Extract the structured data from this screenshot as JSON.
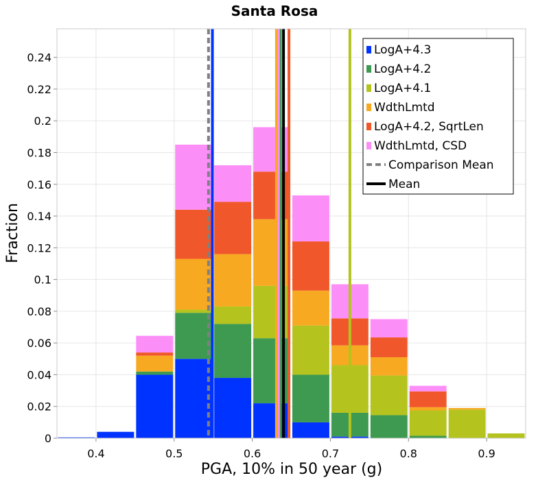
{
  "chart_data": {
    "type": "bar",
    "stacked": true,
    "title": "Santa Rosa",
    "xlabel": "PGA, 10% in 50 year (g)",
    "ylabel": "Fraction",
    "xlim": [
      0.35,
      0.95
    ],
    "ylim": [
      0,
      0.258
    ],
    "xticks": [
      0.4,
      0.5,
      0.6,
      0.7,
      0.8,
      0.9
    ],
    "yticks": [
      0,
      0.02,
      0.04,
      0.06,
      0.08,
      0.1,
      0.12,
      0.14,
      0.16,
      0.18,
      0.2,
      0.22,
      0.24
    ],
    "x_tick_labels": [
      "0.4",
      "0.5",
      "0.6",
      "0.7",
      "0.8",
      "0.9"
    ],
    "y_tick_labels": [
      "0",
      "0.02",
      "0.04",
      "0.06",
      "0.08",
      "0.1",
      "0.12",
      "0.14",
      "0.16",
      "0.18",
      "0.2",
      "0.22",
      "0.24"
    ],
    "grid": true,
    "bin_centers": [
      0.375,
      0.425,
      0.475,
      0.525,
      0.575,
      0.625,
      0.675,
      0.725,
      0.775,
      0.825,
      0.875,
      0.925
    ],
    "bin_width": 0.05,
    "series": [
      {
        "name": "LogA+4.3",
        "color": "#0033ff",
        "values": [
          0.0005,
          0.004,
          0.04,
          0.05,
          0.038,
          0.022,
          0.01,
          0.001,
          0,
          0,
          0,
          0
        ]
      },
      {
        "name": "LogA+4.2",
        "color": "#3d9a50",
        "values": [
          0,
          0,
          0.002,
          0.029,
          0.034,
          0.041,
          0.03,
          0.015,
          0.0145,
          0.0015,
          0,
          0
        ]
      },
      {
        "name": "LogA+4.1",
        "color": "#b5c31e",
        "values": [
          0,
          0,
          0,
          0.002,
          0.011,
          0.033,
          0.031,
          0.03,
          0.025,
          0.016,
          0.018,
          0.003
        ]
      },
      {
        "name": "WdthLmtd",
        "color": "#f8a922",
        "values": [
          0,
          0,
          0.01,
          0.032,
          0.033,
          0.042,
          0.022,
          0.0125,
          0.0115,
          0.002,
          0.001,
          0
        ]
      },
      {
        "name": "LogA+4.2, SqrtLen",
        "color": "#f0582b",
        "values": [
          0,
          0,
          0.002,
          0.031,
          0.033,
          0.03,
          0.031,
          0.017,
          0.0125,
          0.01,
          0,
          0
        ]
      },
      {
        "name": "WdthLmtd, CSD",
        "color": "#fc8ef8",
        "values": [
          0,
          0,
          0.0105,
          0.041,
          0.023,
          0.028,
          0.029,
          0.0215,
          0.0115,
          0.0035,
          0,
          0
        ]
      }
    ],
    "vertical_lines": [
      {
        "name": "LogA+4.3",
        "x": 0.549,
        "color": "#0033ff",
        "width": 4,
        "dashed": false
      },
      {
        "name": "LogA+4.1",
        "x": 0.725,
        "color": "#b5c31e",
        "width": 4,
        "dashed": false
      },
      {
        "name": "WdthLmtd",
        "x": 0.631,
        "color": "#f8a922",
        "width": 4,
        "dashed": false
      },
      {
        "name": "LogA+4.2",
        "x": 0.636,
        "color": "#3d9a50",
        "width": 4,
        "dashed": false
      },
      {
        "name": "LogA+4.2, SqrtLen",
        "x": 0.647,
        "color": "#f0582b",
        "width": 4,
        "dashed": false
      },
      {
        "name": "WdthLmtd, CSD",
        "x": 0.634,
        "color": "#fc8ef8",
        "width": 3,
        "dashed": false
      },
      {
        "name": "Comparison Mean",
        "x": 0.544,
        "color": "#808080",
        "width": 4,
        "dashed": true
      },
      {
        "name": "Mean",
        "x": 0.64,
        "color": "#000000",
        "width": 4,
        "dashed": false
      }
    ],
    "legend": {
      "position": "top-right",
      "entries": [
        {
          "label": "LogA+4.3",
          "color": "#0033ff",
          "style": "box"
        },
        {
          "label": "LogA+4.2",
          "color": "#3d9a50",
          "style": "box"
        },
        {
          "label": "LogA+4.1",
          "color": "#b5c31e",
          "style": "box"
        },
        {
          "label": "WdthLmtd",
          "color": "#f8a922",
          "style": "box"
        },
        {
          "label": "LogA+4.2, SqrtLen",
          "color": "#f0582b",
          "style": "box"
        },
        {
          "label": "WdthLmtd, CSD",
          "color": "#fc8ef8",
          "style": "box"
        },
        {
          "label": "Comparison Mean",
          "color": "#808080",
          "style": "dashed-line"
        },
        {
          "label": "Mean",
          "color": "#000000",
          "style": "line"
        }
      ]
    }
  }
}
